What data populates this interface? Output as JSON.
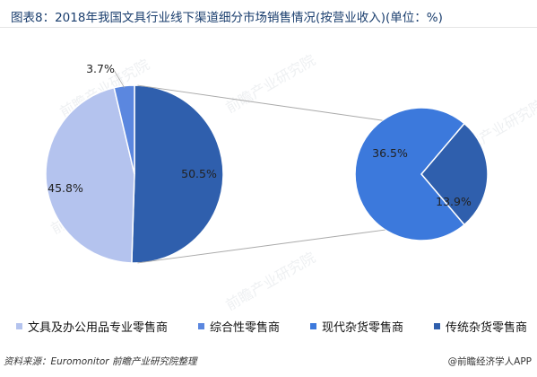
{
  "title": "图表8：2018年我国文具行业线下渠道细分市场销售情况(按营业收入)(单位：%)",
  "chart_data": {
    "type": "pie",
    "subtype": "pie-of-pie",
    "title": "图表8：2018年我国文具行业线下渠道细分市场销售情况(按营业收入)(单位：%)",
    "main_pie": {
      "slices": [
        {
          "name": "文具及办公用品专业零售商",
          "value": 45.8,
          "label": "45.8%",
          "color": "#b4c3ee"
        },
        {
          "name": "综合性零售商",
          "value": 3.7,
          "label": "3.7%",
          "color": "#5b87df"
        },
        {
          "name": "现代杂货零售商 + 传统杂货零售商",
          "value": 50.5,
          "label": "50.5%",
          "color": "#2f5fad"
        }
      ]
    },
    "sub_pie": {
      "slices": [
        {
          "name": "现代杂货零售商",
          "value": 36.5,
          "label": "36.5%",
          "color": "#3c79dc"
        },
        {
          "name": "传统杂货零售商",
          "value": 13.9,
          "label": "13.9%",
          "color": "#2f5fad"
        }
      ]
    },
    "legend": [
      {
        "label": "文具及办公用品专业零售商",
        "color": "#b4c3ee"
      },
      {
        "label": "综合性零售商",
        "color": "#5b87df"
      },
      {
        "label": "现代杂货零售商",
        "color": "#3c79dc"
      },
      {
        "label": "传统杂货零售商",
        "color": "#2f5fad"
      }
    ],
    "legend_placement": "bottom"
  },
  "footer": {
    "source": "资料来源：Euromonitor 前瞻产业研究院整理",
    "credit": "@前瞻经济学人APP"
  },
  "watermark": "前瞻产业研究院"
}
